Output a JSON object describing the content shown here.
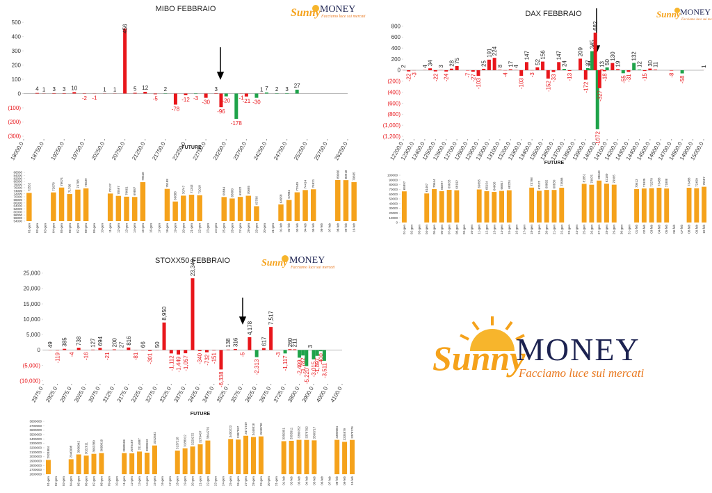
{
  "chart_data": [
    {
      "type": "bar",
      "title": "MIBO FEBBRAIO",
      "x": [
        18500,
        18750,
        19000,
        19250,
        19500,
        19750,
        20000,
        20250,
        20500,
        20750,
        21000,
        21250,
        21500,
        21750,
        22000,
        22250,
        22500,
        22750,
        23000,
        23125,
        23250,
        23500,
        23625,
        23750,
        24000,
        24125,
        24250,
        24500,
        24750,
        25000
      ],
      "values": [
        4,
        1,
        3,
        3,
        10,
        -2,
        -1,
        1,
        1,
        456,
        5,
        12,
        -5,
        2,
        -78,
        -12,
        -3,
        -30,
        3,
        -96,
        -20,
        -178,
        -1,
        -21,
        -30,
        1,
        7,
        2,
        3,
        27
      ],
      "colors": [
        "#e8161b",
        "#e8161b",
        "#e8161b",
        "#e8161b",
        "#e8161b",
        "#e8161b",
        "#e8161b",
        "#e8161b",
        "#e8161b",
        "#e8161b",
        "#e8161b",
        "#e8161b",
        "#e8161b",
        "#1fa34a",
        "#e8161b",
        "#e8161b",
        "#1fa34a",
        "#e8161b",
        "#e8161b",
        "#e8161b",
        "#1fa34a",
        "#1fa34a",
        "#e8161b",
        "#e8161b",
        "#1fa34a",
        "#e8161b",
        "#1fa34a",
        "#1fa34a",
        "#1fa34a",
        "#1fa34a"
      ],
      "xlim": [
        18000,
        26250
      ],
      "xticks": [
        {
          "value": 18000,
          "label": "18000.0"
        },
        {
          "value": 18750,
          "label": "18750.0"
        },
        {
          "value": 19250,
          "label": "19250.0"
        },
        {
          "value": 19750,
          "label": "19750.0"
        },
        {
          "value": 20250,
          "label": "20250.0"
        },
        {
          "value": 20750,
          "label": "20750.0"
        },
        {
          "value": 21250,
          "label": "21250.0"
        },
        {
          "value": 21750,
          "label": "21750.0"
        },
        {
          "value": 22250,
          "label": "22250.0"
        },
        {
          "value": 22750,
          "label": "22750.0"
        },
        {
          "value": 23250,
          "label": "23250.0"
        },
        {
          "value": 23750,
          "label": "23750.0"
        },
        {
          "value": 24250,
          "label": "24250.0"
        },
        {
          "value": 24750,
          "label": "24750.0"
        },
        {
          "value": 25250,
          "label": "25250.0"
        },
        {
          "value": 25750,
          "label": "25750.0"
        },
        {
          "value": 26250,
          "label": "26250.0"
        }
      ],
      "ylim": [
        -320,
        540
      ],
      "yticks": [
        500,
        400,
        300,
        200,
        100,
        0,
        {
          "value": -100,
          "label": "(100)"
        },
        {
          "value": -200,
          "label": "(200)"
        },
        {
          "value": -300,
          "label": "(300)"
        }
      ]
    },
    {
      "type": "bar",
      "title": "FUTURE",
      "color": "#f5a21b",
      "categories": [
        "01-gen",
        "02-gen",
        "03-gen",
        "04-gen",
        "05-gen",
        "06-gen",
        "07-gen",
        "08-gen",
        "09-gen",
        "10-gen",
        "11-gen",
        "12-gen",
        "13-gen",
        "14-gen",
        "15-gen",
        "16-gen",
        "17-gen",
        "18-gen",
        "19-gen",
        "20-gen",
        "21-gen",
        "22-gen",
        "23-gen",
        "24-gen",
        "25-gen",
        "26-gen",
        "27-gen",
        "28-gen",
        "29-gen",
        "30-gen",
        "31-gen",
        "01-feb",
        "02-feb",
        "03-feb",
        "04-feb",
        "05-feb",
        "06-feb",
        "07-feb",
        "08-feb",
        "09-feb",
        "10-feb"
      ],
      "values": [
        72552,
        null,
        null,
        72878,
        76074,
        71796,
        74708,
        75539,
        null,
        null,
        72137,
        70597,
        70061,
        69887,
        79648,
        null,
        null,
        75188,
        66888,
        70747,
        71343,
        71018,
        null,
        null,
        69844,
        68880,
        69922,
        70685,
        63796,
        null,
        null,
        64958,
        67884,
        72940,
        74414,
        74921,
        null,
        null,
        80966,
        80918,
        79665
      ],
      "ylim": [
        54000,
        86000
      ],
      "yticks": [
        86000,
        84000,
        82000,
        80000,
        78000,
        76000,
        74000,
        72000,
        70000,
        68000,
        66000,
        64000,
        62000,
        60000,
        58000,
        56000,
        54000
      ]
    },
    {
      "type": "bar",
      "title": "DAX FEBBRAIO",
      "x": [
        12200,
        12250,
        12300,
        12400,
        12450,
        12500,
        12550,
        12600,
        12650,
        12700,
        12800,
        12850,
        12900,
        12950,
        13000,
        13050,
        13100,
        13150,
        13200,
        13250,
        13300,
        13350,
        13400,
        13450,
        13500,
        13550,
        13600,
        13650,
        13700,
        13750,
        13850,
        13900,
        13920,
        13940,
        13960,
        13990,
        14010,
        14030,
        14050,
        14075,
        14100,
        14150,
        14200,
        14250,
        14300,
        14350,
        14400,
        14450,
        14500,
        14550,
        14700,
        14800,
        15000
      ],
      "values": [
        2,
        -22,
        -3,
        4,
        34,
        -22,
        3,
        -24,
        28,
        75,
        -7,
        -27,
        -103,
        25,
        191,
        224,
        8,
        -4,
        17,
        4,
        -103,
        147,
        -3,
        52,
        156,
        -152,
        -33,
        147,
        24,
        -13,
        209,
        -172,
        37,
        24,
        345,
        682,
        -1072,
        -327,
        13,
        -18,
        50,
        130,
        19,
        -55,
        -31,
        132,
        12,
        -15,
        30,
        11,
        -8,
        -58,
        1
      ],
      "colors": [
        "#e8161b",
        "#e8161b",
        "#e8161b",
        "#e8161b",
        "#e8161b",
        "#e8161b",
        "#e8161b",
        "#e8161b",
        "#e8161b",
        "#e8161b",
        "#e8161b",
        "#e8161b",
        "#e8161b",
        "#e8161b",
        "#e8161b",
        "#e8161b",
        "#e8161b",
        "#e8161b",
        "#e8161b",
        "#e8161b",
        "#e8161b",
        "#e8161b",
        "#e8161b",
        "#e8161b",
        "#e8161b",
        "#e8161b",
        "#e8161b",
        "#e8161b",
        "#1fa34a",
        "#e8161b",
        "#e8161b",
        "#e8161b",
        "#1fa34a",
        "#1fa34a",
        "#1fa34a",
        "#e8161b",
        "#1fa34a",
        "#e8161b",
        "#e8161b",
        "#e8161b",
        "#1fa34a",
        "#e8161b",
        "#e8161b",
        "#1fa34a",
        "#e8161b",
        "#1fa34a",
        "#1fa34a",
        "#e8161b",
        "#e8161b",
        "#e8161b",
        "#e8161b",
        "#1fa34a",
        "#e8161b"
      ],
      "xlim": [
        12200,
        15000
      ],
      "xticks": [
        {
          "value": 12200,
          "label": "12200.0"
        },
        {
          "value": 12300,
          "label": "12300.0"
        },
        {
          "value": 12400,
          "label": "12400.0"
        },
        {
          "value": 12500,
          "label": "12500.0"
        },
        {
          "value": 12600,
          "label": "12600.0"
        },
        {
          "value": 12700,
          "label": "12700.0"
        },
        {
          "value": 12800,
          "label": "12800.0"
        },
        {
          "value": 12900,
          "label": "12900.0"
        },
        {
          "value": 13000,
          "label": "13000.0"
        },
        {
          "value": 13100,
          "label": "13100.0"
        },
        {
          "value": 13200,
          "label": "13200.0"
        },
        {
          "value": 13300,
          "label": "13300.0"
        },
        {
          "value": 13400,
          "label": "13400.0"
        },
        {
          "value": 13500,
          "label": "13500.0"
        },
        {
          "value": 13600,
          "label": "13600.0"
        },
        {
          "value": 13700,
          "label": "13700.0"
        },
        {
          "value": 13800,
          "label": "13800.0"
        },
        {
          "value": 13900,
          "label": "13900.0"
        },
        {
          "value": 14000,
          "label": "14000.0"
        },
        {
          "value": 14100,
          "label": "14100.0"
        },
        {
          "value": 14200,
          "label": "14200.0"
        },
        {
          "value": 14300,
          "label": "14300.0"
        },
        {
          "value": 14400,
          "label": "14400.0"
        },
        {
          "value": 14500,
          "label": "14500.0"
        },
        {
          "value": 14600,
          "label": "14600.0"
        },
        {
          "value": 14700,
          "label": "14700.0"
        },
        {
          "value": 14800,
          "label": "14800.0"
        },
        {
          "value": 14900,
          "label": "14900.0"
        },
        {
          "value": 15000,
          "label": "15000.0"
        }
      ],
      "ylim": [
        -1250,
        870
      ],
      "yticks": [
        800,
        600,
        400,
        200,
        0,
        {
          "value": -200,
          "label": "(200)"
        },
        {
          "value": -400,
          "label": "(400)"
        },
        {
          "value": -600,
          "label": "(600)"
        },
        {
          "value": -800,
          "label": "(800)"
        },
        {
          "value": -1000,
          "label": "(1,000)"
        },
        {
          "value": -1200,
          "label": "(1,200)"
        }
      ]
    },
    {
      "type": "bar",
      "title": "FUTURE",
      "color": "#f5a21b",
      "categories": [
        "01-gen",
        "02-gen",
        "03-gen",
        "04-gen",
        "05-gen",
        "06-gen",
        "07-gen",
        "08-gen",
        "09-gen",
        "10-gen",
        "11-gen",
        "12-gen",
        "13-gen",
        "14-gen",
        "15-gen",
        "16-gen",
        "17-gen",
        "18-gen",
        "19-gen",
        "20-gen",
        "21-gen",
        "22-gen",
        "23-gen",
        "24-gen",
        "25-gen",
        "26-gen",
        "27-gen",
        "28-gen",
        "29-gen",
        "30-gen",
        "31-gen",
        "01-feb",
        "02-feb",
        "03-feb",
        "04-feb",
        "05-feb",
        "06-feb",
        "07-feb",
        "08-feb",
        "09-feb",
        "10-feb"
      ],
      "values": [
        65897,
        null,
        null,
        61467,
        70644,
        66397,
        69033,
        68192,
        null,
        null,
        69895,
        66154,
        64608,
        66847,
        68224,
        null,
        null,
        73798,
        67122,
        68882,
        68830,
        73588,
        null,
        null,
        81851,
        79875,
        88649,
        82180,
        79995,
        null,
        null,
        70613,
        71930,
        72578,
        73488,
        71888,
        null,
        null,
        73488,
        72450,
        75587
      ],
      "ylim": [
        0,
        100000
      ],
      "yticks": [
        100000,
        90000,
        80000,
        70000,
        60000,
        50000,
        40000,
        30000,
        20000,
        10000,
        0
      ]
    },
    {
      "type": "bar",
      "title": "STOXX50 FEBBRAIO",
      "x": [
        2900,
        2925,
        2950,
        2975,
        3000,
        3025,
        3050,
        3075,
        3100,
        3125,
        3150,
        3175,
        3200,
        3225,
        3250,
        3275,
        3300,
        3325,
        3350,
        3375,
        3400,
        3425,
        3450,
        3475,
        3500,
        3525,
        3550,
        3575,
        3600,
        3625,
        3650,
        3675,
        3700,
        3725,
        3750,
        3775,
        3800,
        3825,
        3850,
        3875,
        3900,
        3925,
        3950,
        3975
      ],
      "values": [
        49,
        -119,
        385,
        -4,
        738,
        -16,
        127,
        694,
        -21,
        200,
        27,
        816,
        -81,
        66,
        -301,
        50,
        8950,
        -1112,
        -1449,
        -1057,
        23340,
        -340,
        -732,
        -151,
        -6338,
        138,
        316,
        -5,
        4178,
        -2313,
        617,
        7517,
        -3,
        -1117,
        260,
        211,
        -2499,
        -1782,
        -5220,
        3,
        -3015,
        -1897,
        -400,
        -3511
      ],
      "value_labels": [
        "49",
        "-119",
        "385",
        "-4",
        "738",
        "-16",
        "127",
        "694",
        "-21",
        "200",
        "27",
        "816",
        "-81",
        "66",
        "-301",
        "50",
        "8,950",
        "-1,112",
        "-1,449",
        "-1,057",
        "23,340",
        "-340",
        "-732",
        "-151",
        "-6,338",
        "138",
        "316",
        "-5",
        "4,178",
        "-2,313",
        "617",
        "7,517",
        "-3",
        "-1,117",
        "260",
        "211",
        "-2,499",
        "-1,782",
        "-5,220",
        "3",
        "-3,015",
        "-1,897",
        "-400",
        "-3,511"
      ],
      "colors": [
        "#e8161b",
        "#e8161b",
        "#e8161b",
        "#e8161b",
        "#e8161b",
        "#e8161b",
        "#e8161b",
        "#e8161b",
        "#e8161b",
        "#e8161b",
        "#e8161b",
        "#e8161b",
        "#e8161b",
        "#e8161b",
        "#e8161b",
        "#e8161b",
        "#e8161b",
        "#e8161b",
        "#e8161b",
        "#e8161b",
        "#e8161b",
        "#e8161b",
        "#e8161b",
        "#e8161b",
        "#e8161b",
        "#e8161b",
        "#e8161b",
        "#1fa34a",
        "#e8161b",
        "#1fa34a",
        "#e8161b",
        "#e8161b",
        "#1fa34a",
        "#1fa34a",
        "#e8161b",
        "#e8161b",
        "#1fa34a",
        "#1fa34a",
        "#1fa34a",
        "#e8161b",
        "#1fa34a",
        "#1fa34a",
        "#1fa34a",
        "#1fa34a"
      ],
      "xlim": [
        2875,
        4100
      ],
      "xticks": [
        {
          "value": 2875,
          "label": "2875.0"
        },
        {
          "value": 2925,
          "label": "2925.0"
        },
        {
          "value": 2975,
          "label": "2975.0"
        },
        {
          "value": 3025,
          "label": "3025.0"
        },
        {
          "value": 3075,
          "label": "3075.0"
        },
        {
          "value": 3125,
          "label": "3125.0"
        },
        {
          "value": 3175,
          "label": "3175.0"
        },
        {
          "value": 3225,
          "label": "3225.0"
        },
        {
          "value": 3275,
          "label": "3275.0"
        },
        {
          "value": 3325,
          "label": "3325.0"
        },
        {
          "value": 3375,
          "label": "3375.0"
        },
        {
          "value": 3425,
          "label": "3425.0"
        },
        {
          "value": 3475,
          "label": "3475.0"
        },
        {
          "value": 3525,
          "label": "3525.0"
        },
        {
          "value": 3575,
          "label": "3575.0"
        },
        {
          "value": 3625,
          "label": "3625.0"
        },
        {
          "value": 3675,
          "label": "3675.0"
        },
        {
          "value": 3725,
          "label": "3725.0"
        },
        {
          "value": 3800,
          "label": "3800.0"
        },
        {
          "value": 3900,
          "label": "3900.0"
        },
        {
          "value": 4000,
          "label": "4000.0"
        },
        {
          "value": 4100,
          "label": "4100.0"
        }
      ],
      "ylim": [
        -11000,
        27000
      ],
      "yticks": [
        {
          "value": 25000,
          "label": "25,000"
        },
        {
          "value": 20000,
          "label": "20,000"
        },
        {
          "value": 15000,
          "label": "15,000"
        },
        {
          "value": 10000,
          "label": "10,000"
        },
        {
          "value": 5000,
          "label": "5,000"
        },
        0,
        {
          "value": -5000,
          "label": "(5,000)"
        },
        {
          "value": -10000,
          "label": "(10,000)"
        }
      ]
    },
    {
      "type": "bar",
      "title": "FUTURE",
      "color": "#f5a21b",
      "categories": [
        "01-gen",
        "02-gen",
        "03-gen",
        "04-gen",
        "05-gen",
        "06-gen",
        "07-gen",
        "08-gen",
        "09-gen",
        "10-gen",
        "11-gen",
        "12-gen",
        "13-gen",
        "14-gen",
        "15-gen",
        "16-gen",
        "17-gen",
        "18-gen",
        "19-gen",
        "20-gen",
        "21-gen",
        "22-gen",
        "23-gen",
        "24-gen",
        "25-gen",
        "26-gen",
        "27-gen",
        "28-gen",
        "29-gen",
        "30-gen",
        "31-gen",
        "01-feb",
        "02-feb",
        "03-feb",
        "04-feb",
        "05-feb",
        "06-feb",
        "07-feb",
        "08-feb",
        "09-feb",
        "10-feb"
      ],
      "values": [
        2924804,
        null,
        null,
        2940908,
        3050042,
        3022611,
        3063389,
        3080818,
        null,
        null,
        3080586,
        3075487,
        3114887,
        3089553,
        3252582,
        null,
        null,
        3137218,
        3188912,
        3229272,
        3279407,
        3364776,
        null,
        null,
        3400223,
        3387097,
        3472749,
        3446018,
        3458700,
        null,
        null,
        3350351,
        3358911,
        3380752,
        3378792,
        3368717,
        null,
        null,
        3380684,
        3335879,
        3378776
      ],
      "ylim": [
        2600000,
        3800000
      ],
      "yticks": [
        3800000,
        3700000,
        3600000,
        3500000,
        3400000,
        3300000,
        3200000,
        3100000,
        3000000,
        2900000,
        2800000,
        2700000,
        2600000
      ]
    }
  ],
  "logo": {
    "script": "Sunny",
    "brand": "MONEY",
    "tagline": "Facciamo luce sui mercati"
  }
}
